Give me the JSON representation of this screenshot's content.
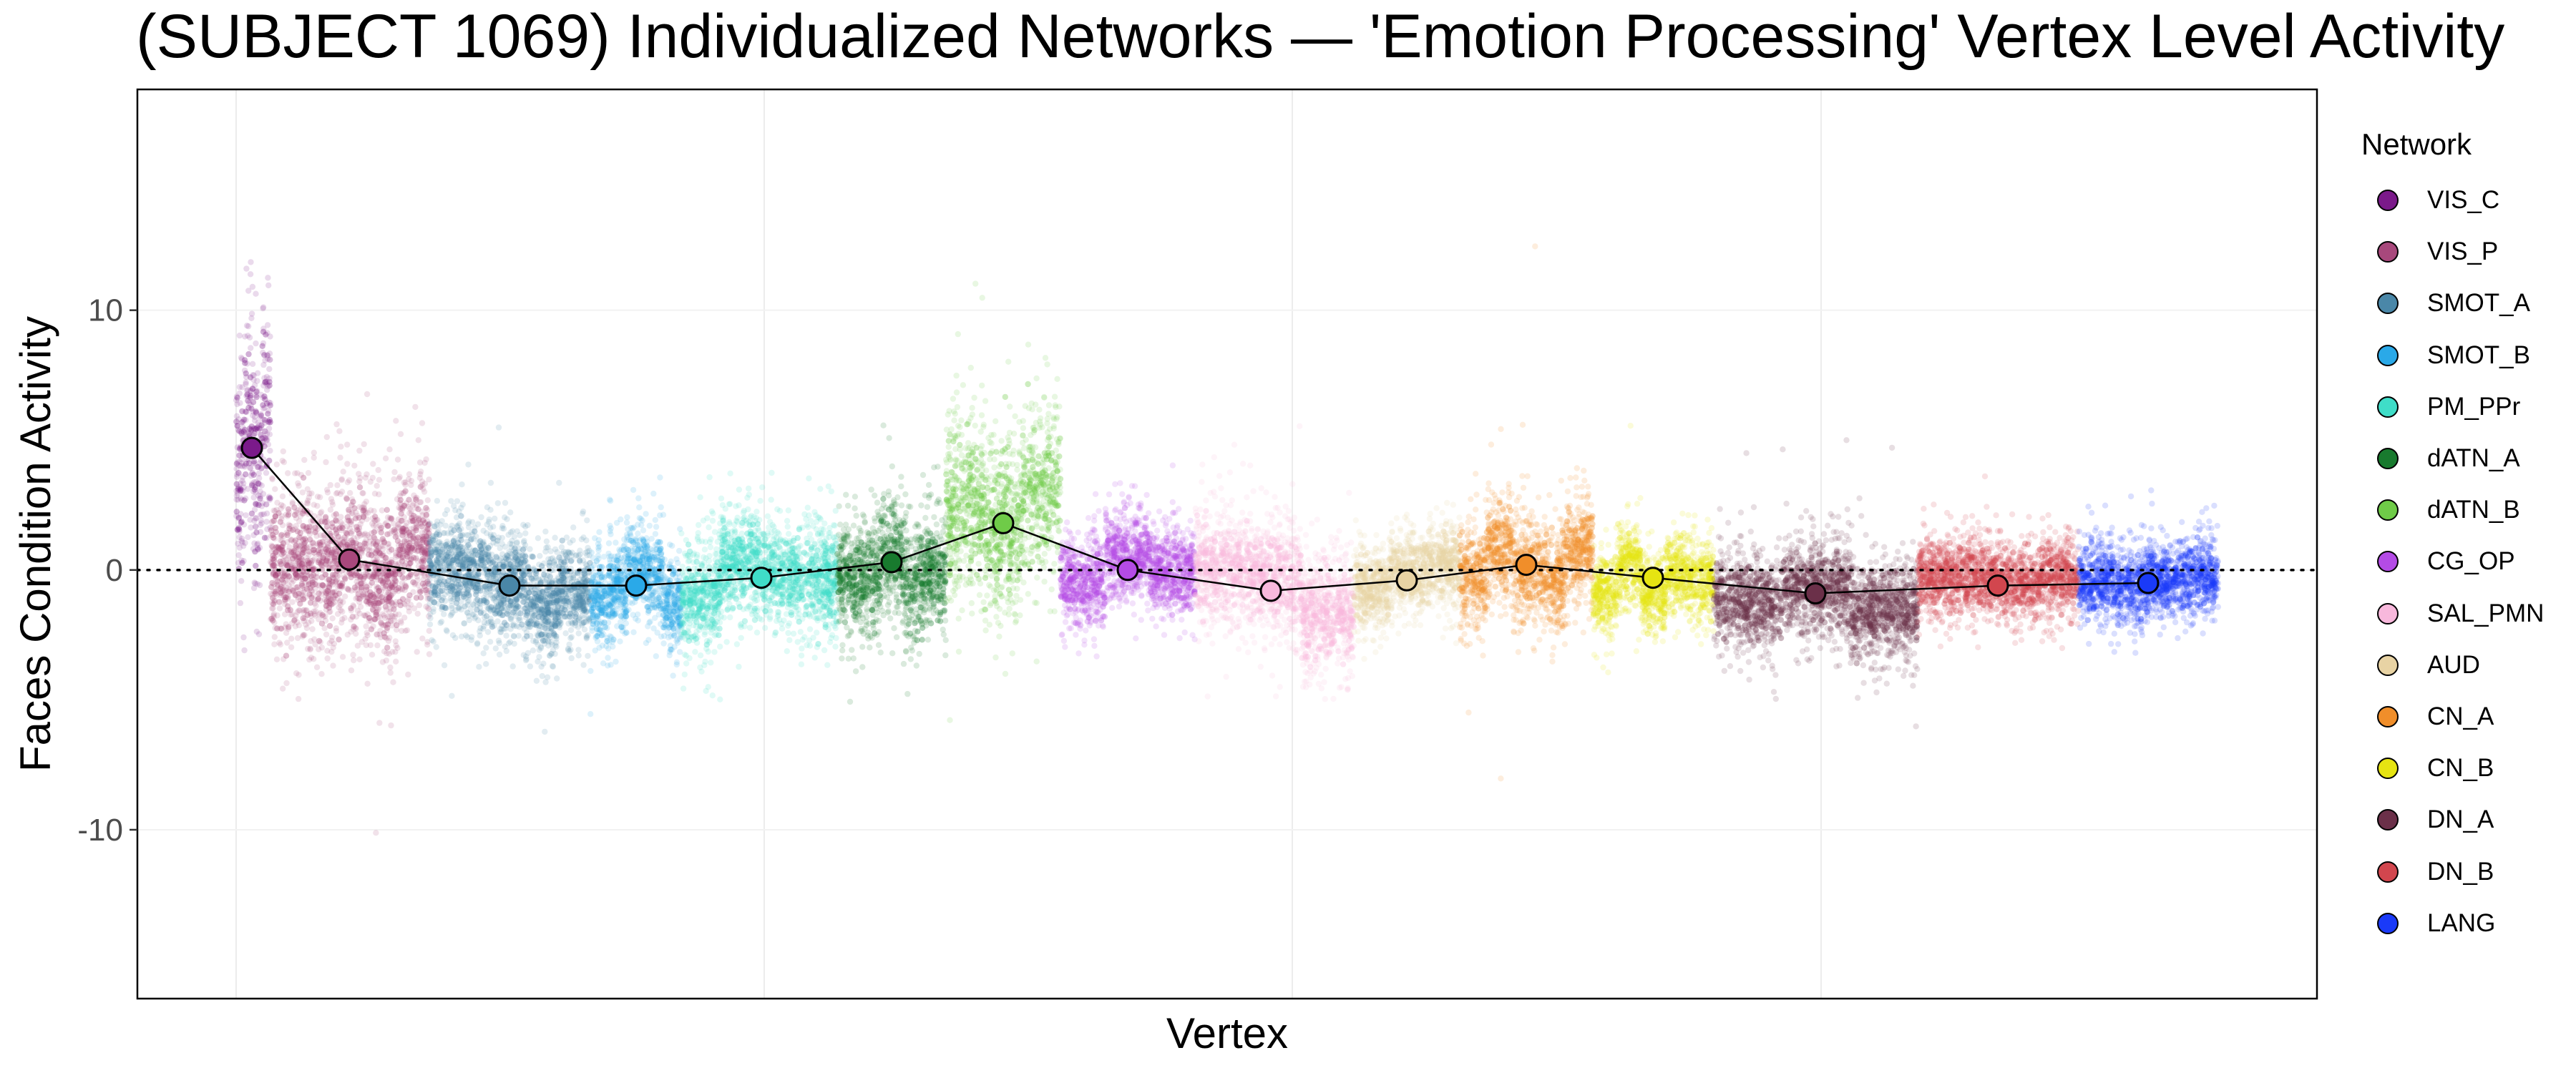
{
  "chart_data": {
    "type": "scatter",
    "title": "(SUBJECT 1069) Individualized Networks — 'Emotion Processing' Vertex Level Activity",
    "xlabel": "Vertex",
    "ylabel": "Faces Condition Activity",
    "ylim": [
      -16.5,
      18.5
    ],
    "y_ticks": [
      10,
      0,
      -10
    ],
    "y_tick_labels": [
      "10",
      "0",
      "-10"
    ],
    "reference_line_y": 0,
    "grid": true,
    "legend_title": "Network",
    "legend_position": "right",
    "networks": [
      {
        "name": "VIS_C",
        "color": "#7B1A8A",
        "mean": 4.7
      },
      {
        "name": "VIS_P",
        "color": "#A8487C",
        "mean": 0.4
      },
      {
        "name": "SMOT_A",
        "color": "#4A87A8",
        "mean": -0.6
      },
      {
        "name": "SMOT_B",
        "color": "#2AA9E8",
        "mean": -0.6
      },
      {
        "name": "PM_PPr",
        "color": "#3FDDC8",
        "mean": -0.3
      },
      {
        "name": "dATN_A",
        "color": "#187A2E",
        "mean": 0.3
      },
      {
        "name": "dATN_B",
        "color": "#6FCB48",
        "mean": 1.8
      },
      {
        "name": "CG_OP",
        "color": "#B44BE6",
        "mean": 0.0
      },
      {
        "name": "SAL_PMN",
        "color": "#F8B8DC",
        "mean": -0.8
      },
      {
        "name": "AUD",
        "color": "#E8D3A4",
        "mean": -0.4
      },
      {
        "name": "CN_A",
        "color": "#F08E2A",
        "mean": 0.2
      },
      {
        "name": "CN_B",
        "color": "#E6E412",
        "mean": -0.3
      },
      {
        "name": "DN_A",
        "color": "#6B3049",
        "mean": -0.9
      },
      {
        "name": "DN_B",
        "color": "#D2464E",
        "mean": -0.6
      },
      {
        "name": "LANG",
        "color": "#1A3AF8",
        "mean": -0.5
      }
    ]
  }
}
